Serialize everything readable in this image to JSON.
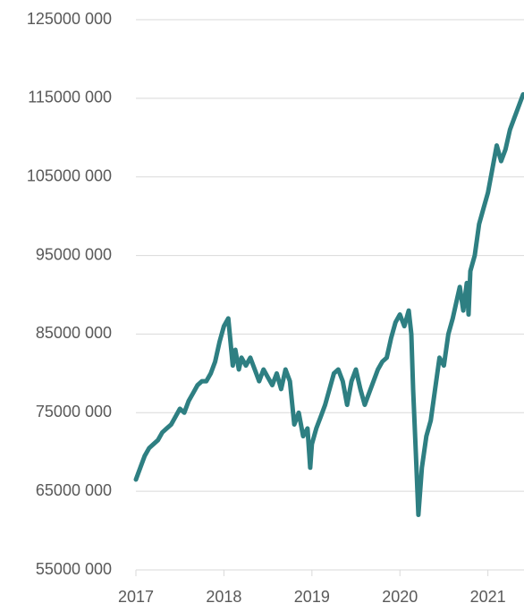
{
  "chart_data": {
    "type": "line",
    "x": [
      2017.0,
      2017.05,
      2017.1,
      2017.15,
      2017.2,
      2017.25,
      2017.3,
      2017.35,
      2017.4,
      2017.45,
      2017.5,
      2017.55,
      2017.6,
      2017.65,
      2017.7,
      2017.75,
      2017.8,
      2017.85,
      2017.9,
      2017.95,
      2018.0,
      2018.05,
      2018.1,
      2018.13,
      2018.17,
      2018.2,
      2018.25,
      2018.3,
      2018.35,
      2018.4,
      2018.45,
      2018.5,
      2018.55,
      2018.6,
      2018.65,
      2018.7,
      2018.75,
      2018.8,
      2018.85,
      2018.9,
      2018.95,
      2018.98,
      2019.0,
      2019.05,
      2019.1,
      2019.15,
      2019.2,
      2019.25,
      2019.3,
      2019.35,
      2019.4,
      2019.45,
      2019.5,
      2019.55,
      2019.6,
      2019.65,
      2019.7,
      2019.75,
      2019.8,
      2019.85,
      2019.9,
      2019.95,
      2020.0,
      2020.05,
      2020.1,
      2020.13,
      2020.15,
      2020.18,
      2020.21,
      2020.25,
      2020.3,
      2020.35,
      2020.4,
      2020.45,
      2020.5,
      2020.55,
      2020.6,
      2020.65,
      2020.68,
      2020.72,
      2020.76,
      2020.78,
      2020.8,
      2020.85,
      2020.9,
      2020.95,
      2021.0,
      2021.05,
      2021.1,
      2021.15,
      2021.2,
      2021.25,
      2021.3,
      2021.35,
      2021.4
    ],
    "series": [
      {
        "color": "#2e7f82",
        "values": [
          66500000,
          68000000,
          69500000,
          70500000,
          71000000,
          71500000,
          72500000,
          73000000,
          73500000,
          74500000,
          75500000,
          75000000,
          76500000,
          77500000,
          78500000,
          79000000,
          79000000,
          80000000,
          81500000,
          84000000,
          86000000,
          87000000,
          81000000,
          83000000,
          80500000,
          82000000,
          81000000,
          82000000,
          80500000,
          79000000,
          80500000,
          79500000,
          78500000,
          80000000,
          78000000,
          80500000,
          79000000,
          73500000,
          75000000,
          72000000,
          73000000,
          68000000,
          71000000,
          73000000,
          74500000,
          76000000,
          78000000,
          80000000,
          80500000,
          79000000,
          76000000,
          79000000,
          80500000,
          78000000,
          76000000,
          77500000,
          79000000,
          80500000,
          81500000,
          82000000,
          84500000,
          86500000,
          87500000,
          86000000,
          88000000,
          85000000,
          78000000,
          70000000,
          62000000,
          68000000,
          72000000,
          74000000,
          78000000,
          82000000,
          81000000,
          85000000,
          87000000,
          89500000,
          91000000,
          88000000,
          91500000,
          87500000,
          93000000,
          95000000,
          99000000,
          101000000,
          103000000,
          106000000,
          109000000,
          107000000,
          108500000,
          111000000,
          112500000,
          114000000,
          115500000
        ]
      }
    ],
    "xlim": [
      2017,
      2021.41
    ],
    "xticks": [
      2017,
      2018,
      2019,
      2020,
      2021
    ],
    "ylim": [
      55000000,
      125000000
    ],
    "yticks": [
      {
        "value": 55000000,
        "label": "55000 000"
      },
      {
        "value": 65000000,
        "label": "65000 000"
      },
      {
        "value": 75000000,
        "label": "75000 000"
      },
      {
        "value": 85000000,
        "label": "85000 000"
      },
      {
        "value": 95000000,
        "label": "95000 000"
      },
      {
        "value": 105000000,
        "label": "105000 000"
      },
      {
        "value": 115000000,
        "label": "115000 000"
      },
      {
        "value": 125000000,
        "label": "125000 000"
      }
    ],
    "grid": true
  }
}
